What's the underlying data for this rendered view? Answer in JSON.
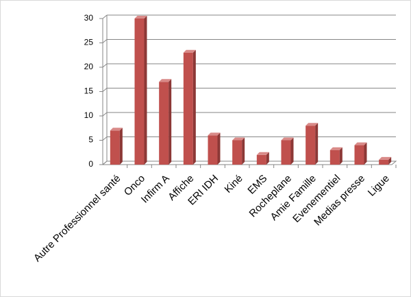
{
  "chart_data": {
    "type": "bar",
    "categories": [
      "Autre Professionnel santé",
      "Onco",
      "Infirm A",
      "Affiche",
      "ERI IDH",
      "Kiné",
      "EMS",
      "Rocheplane",
      "Amie Famille",
      "Evenementiel",
      "Medias presse",
      "Ligue"
    ],
    "values": [
      7,
      30,
      17,
      23,
      6,
      5,
      2,
      5,
      8,
      3,
      4,
      1
    ],
    "color": "#c0504d",
    "ylim": [
      0,
      30
    ],
    "yticks": [
      0,
      5,
      10,
      15,
      20,
      25,
      30
    ],
    "grid": true
  }
}
